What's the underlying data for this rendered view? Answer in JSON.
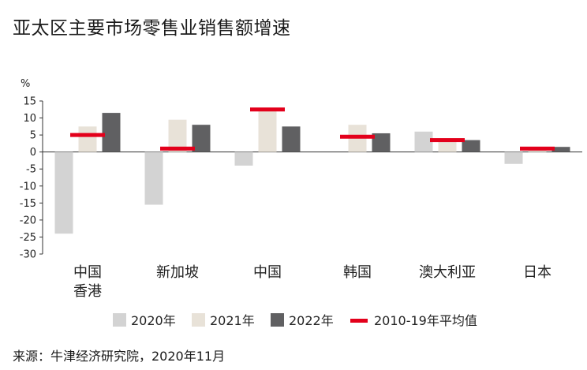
{
  "title": "亚太区主要市场零售业销售额增速",
  "source": "来源：牛津经济研究院，2020年11月",
  "chart_data": {
    "type": "bar",
    "ylabel": "%",
    "ylim": [
      -30,
      15
    ],
    "yticks": [
      15,
      10,
      5,
      0,
      -5,
      -10,
      -15,
      -20,
      -25,
      -30
    ],
    "categories": [
      [
        "中国",
        "香港"
      ],
      [
        "新加坡"
      ],
      [
        "中国"
      ],
      [
        "韩国"
      ],
      [
        "澳大利亚"
      ],
      [
        "日本"
      ]
    ],
    "series": [
      {
        "name": "2020年",
        "color": "#d3d3d3",
        "values": [
          -24,
          -15.5,
          -4,
          0,
          6,
          -3.5
        ]
      },
      {
        "name": "2021年",
        "color": "#e8e2d8",
        "values": [
          7.5,
          9.5,
          12,
          8,
          3.5,
          1
        ]
      },
      {
        "name": "2022年",
        "color": "#606062",
        "values": [
          11.5,
          8,
          7.5,
          5.5,
          3.5,
          1.5
        ]
      }
    ],
    "avg_series": {
      "name": "2010-19年平均值",
      "color": "#e3001b",
      "values": [
        5,
        1,
        12.5,
        4.5,
        3.5,
        1
      ]
    },
    "grid": false,
    "legend": "bottom"
  }
}
